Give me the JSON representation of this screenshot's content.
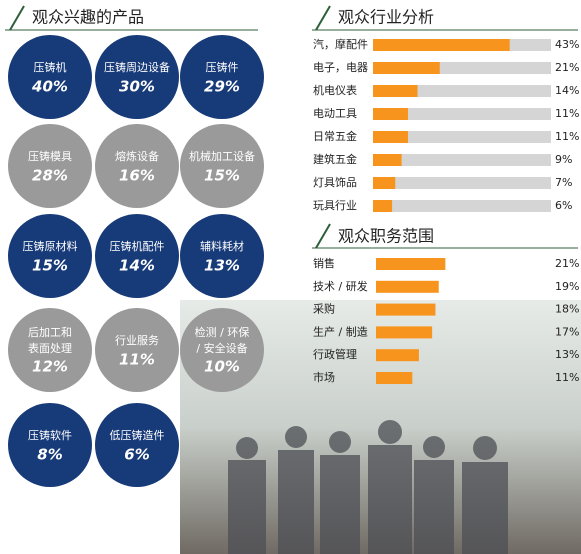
{
  "interest_products": {
    "title": "观众兴趣的产品",
    "items": [
      {
        "label": [
          "压铸机"
        ],
        "value": "40%"
      },
      {
        "label": [
          "压铸周边设备"
        ],
        "value": "30%"
      },
      {
        "label": [
          "压铸件"
        ],
        "value": "29%"
      },
      {
        "label": [
          "压铸模具"
        ],
        "value": "28%"
      },
      {
        "label": [
          "熔炼设备"
        ],
        "value": "16%"
      },
      {
        "label": [
          "机械加工设备"
        ],
        "value": "15%"
      },
      {
        "label": [
          "压铸原材料"
        ],
        "value": "15%"
      },
      {
        "label": [
          "压铸机配件"
        ],
        "value": "14%"
      },
      {
        "label": [
          "辅料耗材"
        ],
        "value": "13%"
      },
      {
        "label": [
          "后加工和",
          "表面处理"
        ],
        "value": "12%"
      },
      {
        "label": [
          "行业服务"
        ],
        "value": "11%"
      },
      {
        "label": [
          "检测 / 环保",
          "/ 安全设备"
        ],
        "value": "10%"
      },
      {
        "label": [
          "压铸软件"
        ],
        "value": "8%"
      },
      {
        "label": [
          "低压铸造件"
        ],
        "value": "6%"
      }
    ],
    "row_colors": [
      "#173a78",
      "#9a9a9a"
    ]
  },
  "chart_data": [
    {
      "type": "bar",
      "orientation": "horizontal",
      "title": "观众行业分析",
      "categories": [
        "汽，摩配件",
        "电子，电器",
        "机电仪表",
        "电动工具",
        "日常五金",
        "建筑五金",
        "灯具饰品",
        "玩具行业"
      ],
      "values": [
        43,
        21,
        14,
        11,
        11,
        9,
        7,
        6
      ],
      "value_labels": [
        "43%",
        "21%",
        "14%",
        "11%",
        "11%",
        "9%",
        "7%",
        "6%"
      ],
      "color": "#f7941d",
      "track_color": "#d5d5d5",
      "xlim": [
        0,
        56
      ]
    },
    {
      "type": "bar",
      "orientation": "horizontal",
      "title": "观众职务范围",
      "categories": [
        "销售",
        "技术 / 研发",
        "采购",
        "生产 / 制造",
        "行政管理",
        "市场"
      ],
      "values": [
        21,
        19,
        18,
        17,
        13,
        11
      ],
      "value_labels": [
        "21%",
        "19%",
        "18%",
        "17%",
        "13%",
        "11%"
      ],
      "color": "#f7941d",
      "xlim": [
        0,
        53
      ]
    }
  ]
}
